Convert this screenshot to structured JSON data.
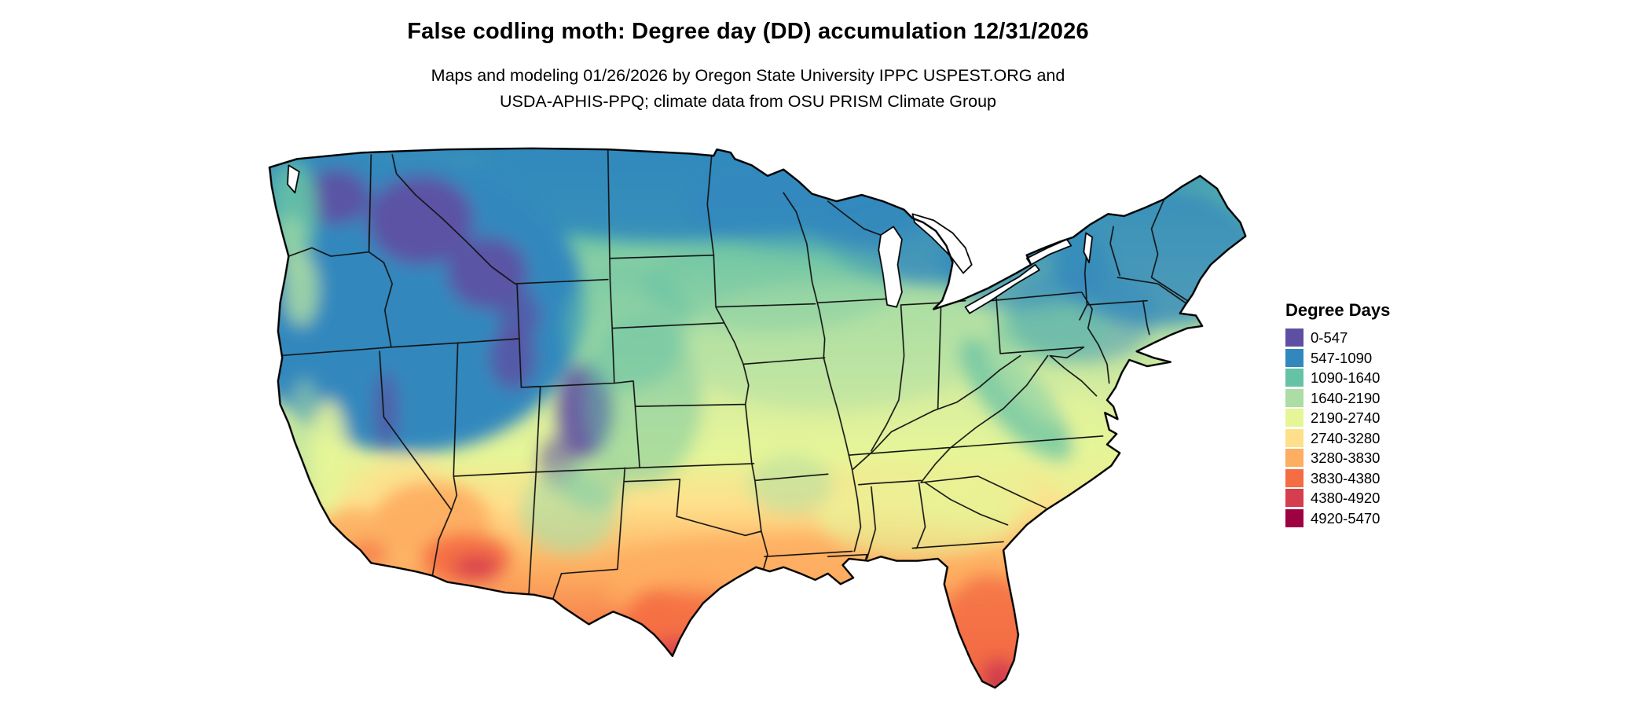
{
  "title": "False codling moth: Degree day (DD) accumulation 12/31/2026",
  "subtitle_line1": "Maps and modeling 01/26/2026 by Oregon State University IPPC USPEST.ORG and",
  "subtitle_line2": "USDA-APHIS-PPQ; climate data from OSU PRISM Climate Group",
  "map": {
    "region": "Conterminous United States",
    "type": "choropleth-raster-degree-days",
    "background_color": "#ffffff",
    "boundary_color": "#000000"
  },
  "legend": {
    "title": "Degree Days",
    "classes": [
      {
        "label": "0-547",
        "color": "#5e4fa2"
      },
      {
        "label": "547-1090",
        "color": "#3288bd"
      },
      {
        "label": "1090-1640",
        "color": "#66c2a5"
      },
      {
        "label": "1640-2190",
        "color": "#abdda4"
      },
      {
        "label": "2190-2740",
        "color": "#e6f598"
      },
      {
        "label": "2740-3280",
        "color": "#fee08b"
      },
      {
        "label": "3280-3830",
        "color": "#fdae61"
      },
      {
        "label": "3830-4380",
        "color": "#f46d43"
      },
      {
        "label": "4380-4920",
        "color": "#d53e4f"
      },
      {
        "label": "4920-5470",
        "color": "#9e0142"
      }
    ]
  }
}
